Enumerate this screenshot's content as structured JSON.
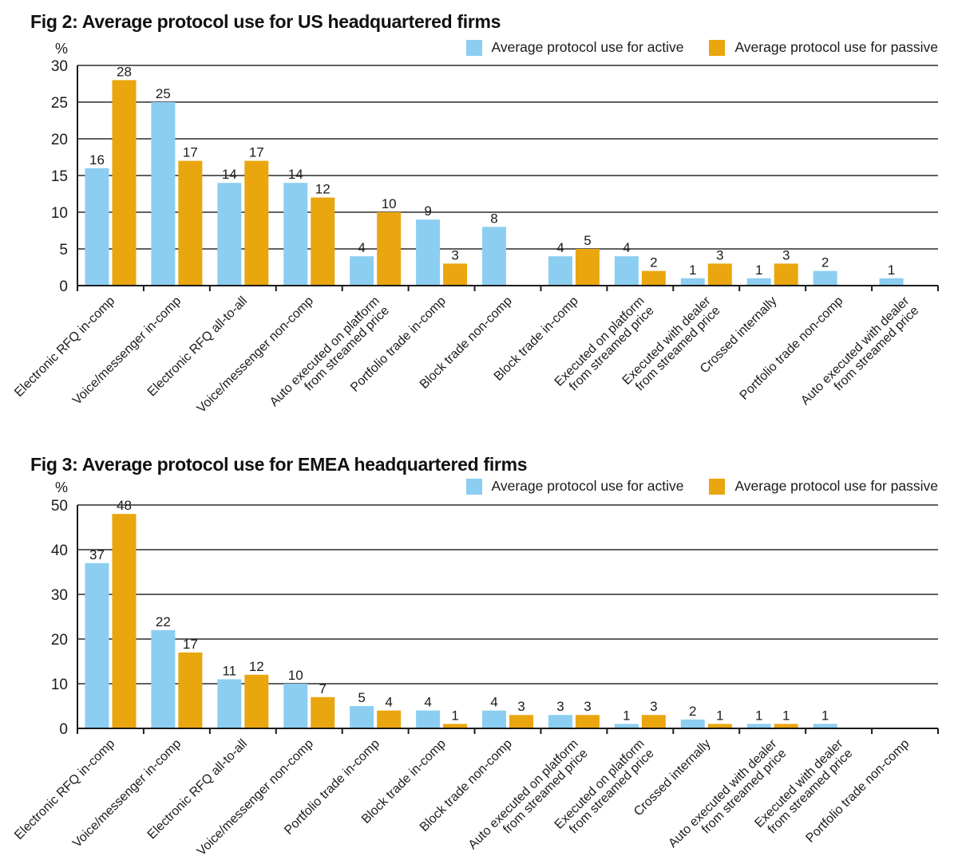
{
  "colors": {
    "active": "#8CCEF1",
    "passive": "#EAA60E",
    "grid": "#2b2b2b",
    "axis": "#1b1b1b",
    "text": "#1b1b1b"
  },
  "chart_data": [
    {
      "type": "bar",
      "title": "Fig 2: Average protocol use for US headquartered firms",
      "xlabel": "",
      "ylabel": "%",
      "ylim": [
        0,
        30
      ],
      "ytick_step": 5,
      "grid": true,
      "legend_position": "top-right",
      "categories": [
        "Electronic RFQ in-comp",
        "Voice/messenger in-comp",
        "Electronic RFQ all-to-all",
        "Voice/messenger non-comp",
        "Auto executed on platform\nfrom streamed price",
        "Portfolio trade in-comp",
        "Block trade non-comp",
        "Block trade in-comp",
        "Executed on platform\nfrom streamed price",
        "Executed with dealer\nfrom streamed price",
        "Crossed internally",
        "Portfolio trade non-comp",
        "Auto executed with dealer\nfrom streamed price"
      ],
      "series": [
        {
          "name": "Average protocol use for active",
          "color": "#8CCEF1",
          "values": [
            16,
            25,
            14,
            14,
            4,
            9,
            8,
            4,
            4,
            1,
            1,
            2,
            1
          ]
        },
        {
          "name": "Average protocol use for passive",
          "color": "#EAA60E",
          "values": [
            28,
            17,
            17,
            12,
            10,
            3,
            null,
            5,
            2,
            3,
            3,
            null,
            null
          ]
        }
      ]
    },
    {
      "type": "bar",
      "title": "Fig 3: Average protocol use for EMEA headquartered firms",
      "xlabel": "",
      "ylabel": "%",
      "ylim": [
        0,
        50
      ],
      "ytick_step": 10,
      "grid": true,
      "legend_position": "top-right",
      "categories": [
        "Electronic RFQ in-comp",
        "Voice/messenger in-comp",
        "Electronic RFQ all-to-all",
        "Voice/messenger non-comp",
        "Portfolio trade in-comp",
        "Block trade in-comp",
        "Block trade non-comp",
        "Auto executed on platform\nfrom streamed price",
        "Executed on platform\nfrom streamed price",
        "Crossed internally",
        "Auto executed with dealer\nfrom streamed price",
        "Executed with dealer\nfrom streamed price",
        "Portfolio trade non-comp"
      ],
      "series": [
        {
          "name": "Average protocol use for active",
          "color": "#8CCEF1",
          "values": [
            37,
            22,
            11,
            10,
            5,
            4,
            4,
            3,
            1,
            2,
            1,
            1,
            null
          ]
        },
        {
          "name": "Average protocol use for passive",
          "color": "#EAA60E",
          "values": [
            48,
            17,
            12,
            7,
            4,
            1,
            3,
            3,
            3,
            1,
            1,
            null,
            null
          ]
        }
      ]
    }
  ]
}
